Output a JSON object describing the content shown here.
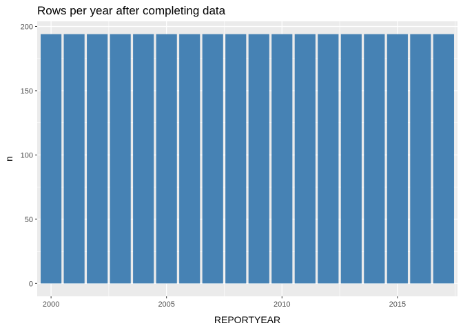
{
  "chart_data": {
    "type": "bar",
    "title": "Rows per year after completing data",
    "xlabel": "REPORTYEAR",
    "ylabel": "n",
    "categories": [
      2000,
      2001,
      2002,
      2003,
      2004,
      2005,
      2006,
      2007,
      2008,
      2009,
      2010,
      2011,
      2012,
      2013,
      2014,
      2015,
      2016,
      2017
    ],
    "values": [
      194,
      194,
      194,
      194,
      194,
      194,
      194,
      194,
      194,
      194,
      194,
      194,
      194,
      194,
      194,
      194,
      194,
      194
    ],
    "xticks": [
      2000,
      2005,
      2010,
      2015
    ],
    "yticks": [
      0,
      50,
      100,
      150,
      200
    ],
    "xlim": [
      1999.4,
      2017.6
    ],
    "ylim": [
      -10,
      204
    ],
    "grid": true,
    "bar_color": "#4682b4",
    "panel_color": "#ebebeb",
    "grid_color": "#ffffff"
  }
}
